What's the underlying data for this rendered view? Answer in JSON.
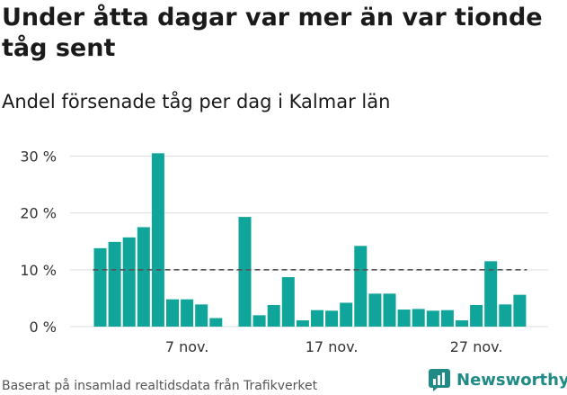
{
  "title": "Under åtta dagar var mer än var tionde tåg sent",
  "subtitle": "Andel försenade tåg per dag i Kalmar län",
  "footer": "Baserat på insamlad realtidsdata från Trafikverket",
  "brand": {
    "name": "Newsworthy",
    "logo_icon": "bar-chart-logo-icon"
  },
  "colors": {
    "bar": "#0fa59a",
    "reference_line": "#555555",
    "grid": "#dddddd",
    "brand": "#1f8a86"
  },
  "chart_data": {
    "type": "bar",
    "x_labels": [
      "7 nov.",
      "17 nov.",
      "27 nov."
    ],
    "x_label_days": [
      7,
      17,
      27
    ],
    "days": [
      1,
      2,
      3,
      4,
      5,
      6,
      7,
      8,
      9,
      11,
      12,
      13,
      14,
      15,
      16,
      17,
      18,
      19,
      20,
      21,
      22,
      23,
      24,
      25,
      26,
      27,
      28,
      29,
      30
    ],
    "values": [
      13.8,
      14.9,
      15.7,
      17.5,
      30.5,
      4.8,
      4.8,
      3.9,
      1.5,
      19.3,
      2.0,
      3.8,
      8.7,
      1.1,
      2.9,
      2.8,
      4.2,
      14.2,
      5.8,
      5.8,
      3.0,
      3.1,
      2.8,
      2.9,
      1.1,
      3.8,
      11.5,
      3.9,
      5.6
    ],
    "y_ticks": [
      0,
      10,
      20,
      30
    ],
    "y_tick_labels": [
      "0 %",
      "10 %",
      "20 %",
      "30 %"
    ],
    "ylim": [
      0,
      30
    ],
    "reference_line": 10,
    "grid": true
  }
}
